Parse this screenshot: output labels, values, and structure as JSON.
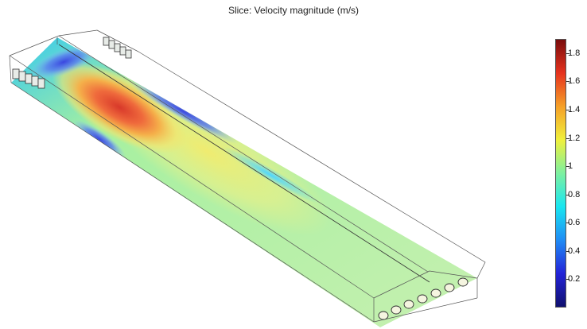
{
  "plot": {
    "title": "Slice: Velocity magnitude (m/s)"
  },
  "colorbar": {
    "colormap": "rainbow",
    "colors": [
      "#10106e",
      "#2323d8",
      "#1f8cf5",
      "#19e6f0",
      "#7df0a0",
      "#f0f03c",
      "#f5a028",
      "#e6321e",
      "#7a0c0c"
    ],
    "min": 0.0,
    "max": 1.9,
    "ticks": [
      {
        "value": 1.8,
        "label": "1.8"
      },
      {
        "value": 1.6,
        "label": "1.6"
      },
      {
        "value": 1.4,
        "label": "1.4"
      },
      {
        "value": 1.2,
        "label": "1.2"
      },
      {
        "value": 1.0,
        "label": "1"
      },
      {
        "value": 0.8,
        "label": "0.8"
      },
      {
        "value": 0.6,
        "label": "0.6"
      },
      {
        "value": 0.4,
        "label": "0.4"
      },
      {
        "value": 0.2,
        "label": "0.2"
      }
    ]
  },
  "geometry_features": {
    "inlet_count_near_end": 5,
    "inlet_count_far_end": 5,
    "outlet_count": 7
  }
}
